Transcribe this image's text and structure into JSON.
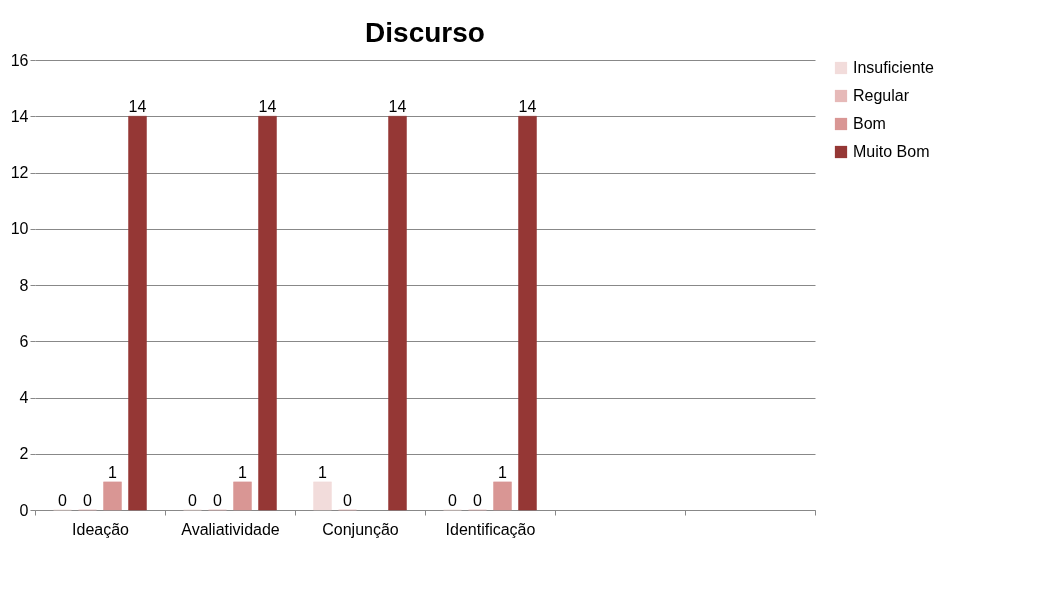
{
  "chart_data": {
    "type": "bar",
    "title": "Discurso",
    "categories": [
      "Ideação",
      "Avaliatividade",
      "Conjunção",
      "Identificação",
      null,
      null
    ],
    "series": [
      {
        "name": "Insuficiente",
        "color": "#f2dcdb",
        "values": [
          0,
          0,
          1,
          0,
          null,
          null
        ]
      },
      {
        "name": "Regular",
        "color": "#e6b9b8",
        "values": [
          0,
          0,
          0,
          0,
          null,
          null
        ]
      },
      {
        "name": "Bom",
        "color": "#d99694",
        "values": [
          1,
          1,
          null,
          1,
          null,
          null
        ]
      },
      {
        "name": "Muito Bom",
        "color": "#953735",
        "values": [
          14,
          14,
          14,
          14,
          null,
          null
        ]
      }
    ],
    "ylim": [
      0,
      16
    ],
    "yticks": [
      0,
      2,
      4,
      6,
      8,
      10,
      12,
      14,
      16
    ],
    "grid": "y",
    "legend": "right",
    "data_labels": true
  }
}
